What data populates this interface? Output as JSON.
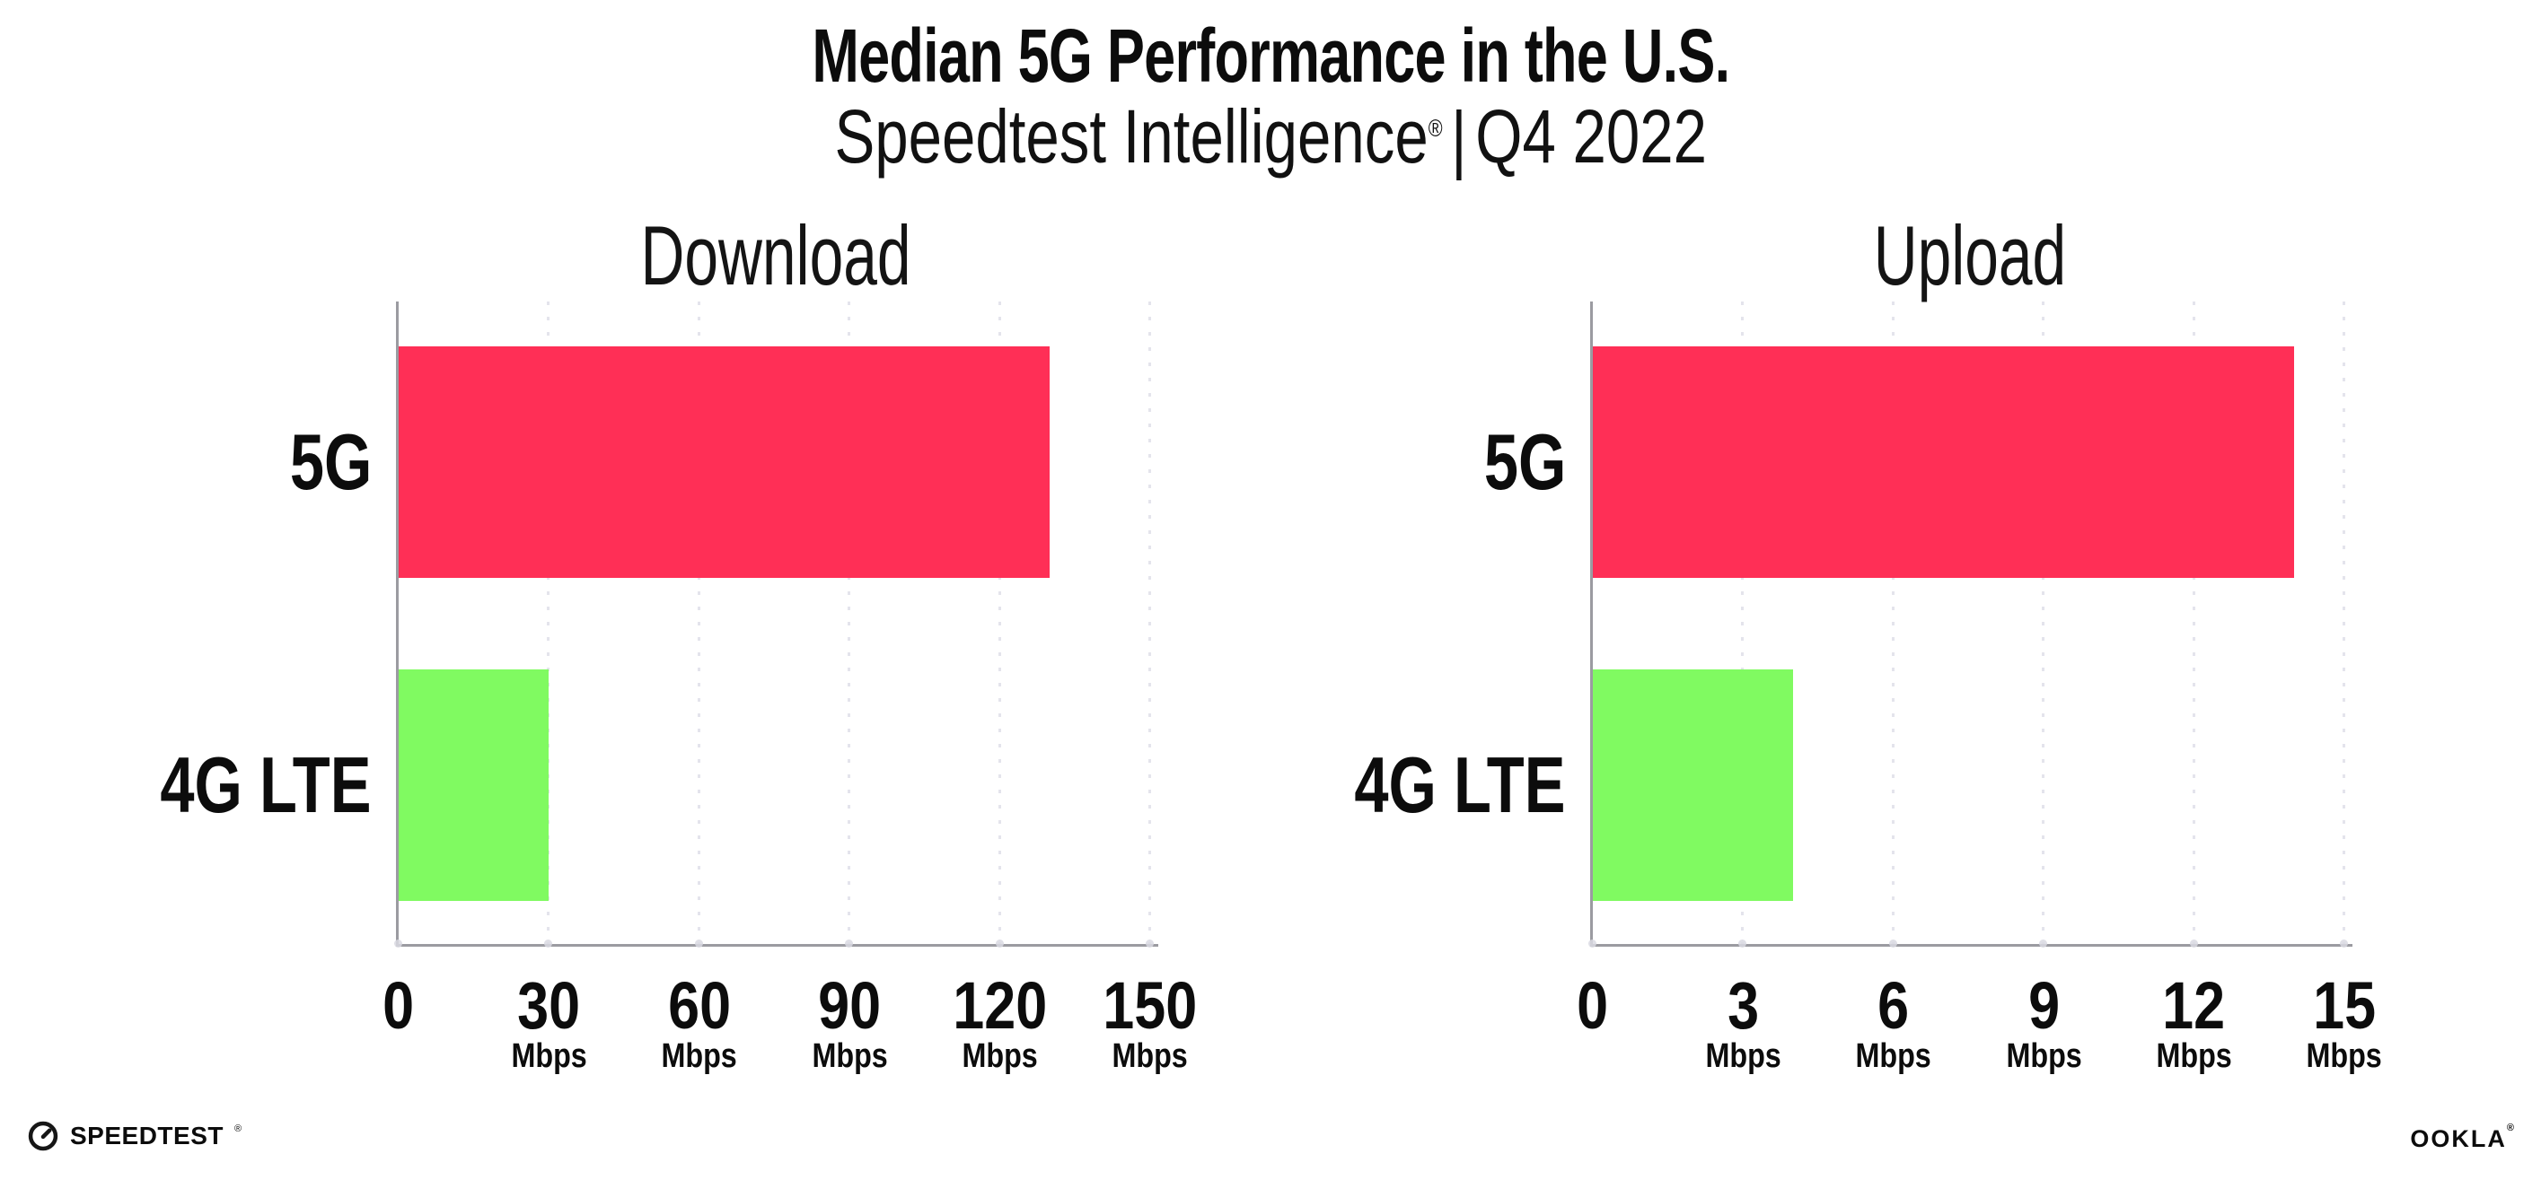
{
  "header": {
    "title": "Median 5G Performance in the U.S.",
    "subtitle_brand": "Speedtest Intelligence",
    "subtitle_reg": "®",
    "subtitle_divider": "|",
    "subtitle_period": "Q4 2022"
  },
  "footer": {
    "speedtest_logo_text": "SPEEDTEST",
    "speedtest_reg": "®",
    "ookla_logo_text": "OOKLA",
    "ookla_reg": "®"
  },
  "colors": {
    "bar_5g": "#ff2f56",
    "bar_4g_lte": "#80fa61",
    "axis_line": "#9b9ba1",
    "gridline": "#e4e4ec",
    "tick_dot": "#d9d9e2",
    "text": "#0c0c0c"
  },
  "chart_data": [
    {
      "type": "bar",
      "orientation": "horizontal",
      "title": "Download",
      "categories": [
        "5G",
        "4G LTE"
      ],
      "values": [
        130,
        30
      ],
      "value_unit": "Mbps",
      "xlim": [
        0,
        150
      ],
      "xticks": [
        0,
        30,
        60,
        90,
        120,
        150
      ],
      "xtick_unit": "Mbps",
      "bar_colors": [
        "#ff2f56",
        "#80fa61"
      ],
      "grid": "dotted vertical gridlines",
      "legend_position": "none"
    },
    {
      "type": "bar",
      "orientation": "horizontal",
      "title": "Upload",
      "categories": [
        "5G",
        "4G LTE"
      ],
      "values": [
        14,
        4
      ],
      "value_unit": "Mbps",
      "xlim": [
        0,
        15
      ],
      "xticks": [
        0,
        3,
        6,
        9,
        12,
        15
      ],
      "xtick_unit": "Mbps",
      "bar_colors": [
        "#ff2f56",
        "#80fa61"
      ],
      "grid": "dotted vertical gridlines",
      "legend_position": "none"
    }
  ]
}
